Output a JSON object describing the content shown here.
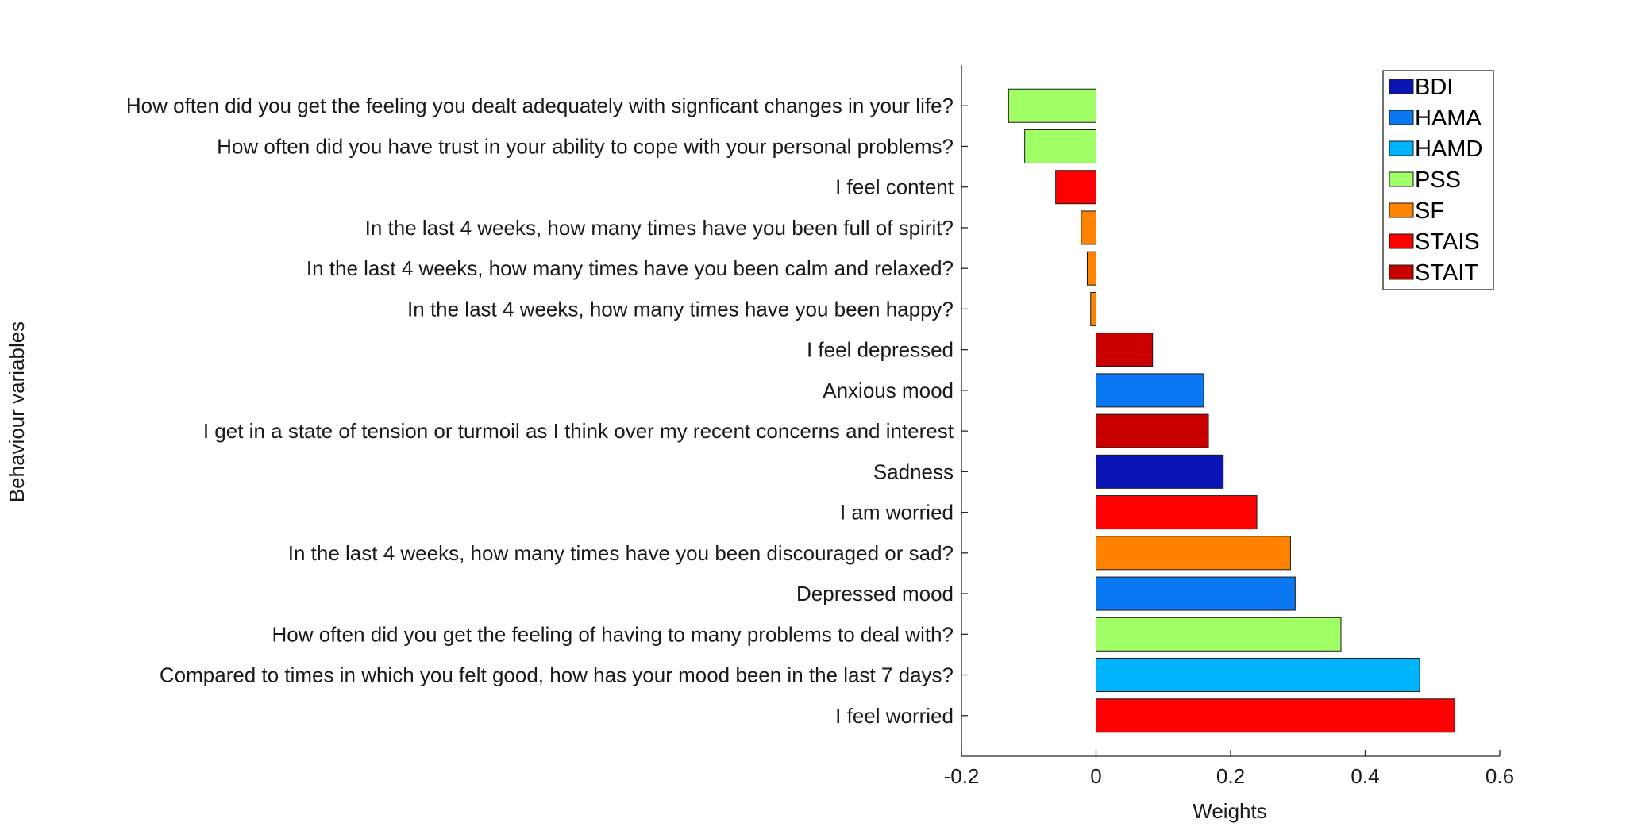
{
  "chart_data": {
    "type": "bar",
    "orientation": "horizontal",
    "xlabel": "Weights",
    "ylabel": "Behaviour variables",
    "xlim": [
      -0.2,
      0.6
    ],
    "xticks": [
      "-0.2",
      "0",
      "0.2",
      "0.4",
      "0.6"
    ],
    "xtick_values": [
      -0.2,
      0,
      0.2,
      0.4,
      0.6
    ],
    "grid": false,
    "legend_position": "top-right",
    "bars": [
      {
        "label": "How often did you get the feeling you dealt adequately with signficant changes in your life?",
        "value": -0.13,
        "group": "PSS"
      },
      {
        "label": "How often did you have trust in your ability to cope with your personal problems?",
        "value": -0.106,
        "group": "PSS"
      },
      {
        "label": "I feel content",
        "value": -0.06,
        "group": "STAIS"
      },
      {
        "label": "In the last 4 weeks, how many times have you been full of spirit?",
        "value": -0.022,
        "group": "SF"
      },
      {
        "label": "In the last 4 weeks, how many times have you been calm and relaxed?",
        "value": -0.013,
        "group": "SF"
      },
      {
        "label": "In the last 4 weeks, how many times have you been happy?",
        "value": -0.008,
        "group": "SF"
      },
      {
        "label": "I feel depressed",
        "value": 0.084,
        "group": "STAIT"
      },
      {
        "label": "Anxious mood",
        "value": 0.16,
        "group": "HAMA"
      },
      {
        "label": "I get in a state of tension or turmoil as I think over my recent concerns and interest",
        "value": 0.167,
        "group": "STAIT"
      },
      {
        "label": "Sadness",
        "value": 0.189,
        "group": "BDI"
      },
      {
        "label": "I am worried",
        "value": 0.239,
        "group": "STAIS"
      },
      {
        "label": "In the last 4 weeks, how many times have you been discouraged or sad?",
        "value": 0.289,
        "group": "SF"
      },
      {
        "label": "Depressed mood",
        "value": 0.296,
        "group": "HAMA"
      },
      {
        "label": "How often did you get the feeling of having to many problems to deal with?",
        "value": 0.364,
        "group": "PSS"
      },
      {
        "label": "Compared to times in which you felt good, how has your mood been in the last 7 days?",
        "value": 0.481,
        "group": "HAMD"
      },
      {
        "label": "I feel worried",
        "value": 0.533,
        "group": "STAIS"
      }
    ],
    "legend": [
      {
        "name": "BDI",
        "color": "#0a14b4"
      },
      {
        "name": "HAMA",
        "color": "#0a78f0"
      },
      {
        "name": "HAMD",
        "color": "#00b4ff"
      },
      {
        "name": "PSS",
        "color": "#a0ff64"
      },
      {
        "name": "SF",
        "color": "#ff8200"
      },
      {
        "name": "STAIS",
        "color": "#ff0000"
      },
      {
        "name": "STAIT",
        "color": "#c80000"
      }
    ]
  }
}
